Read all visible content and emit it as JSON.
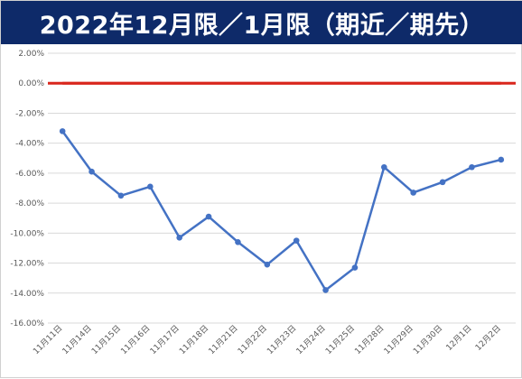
{
  "header": {
    "title": "2022年12月限／1月限（期近／期先）"
  },
  "colors": {
    "title_bg": "#0e2a69",
    "series": "#4472c4",
    "zero_line": "#d9261c",
    "grid": "#d9d9d9"
  },
  "chart_data": {
    "type": "line",
    "title": "2022年12月限／1月限（期近／期先）",
    "xlabel": "",
    "ylabel": "",
    "ylim": [
      -0.16,
      0.02
    ],
    "y_tick_step": 0.02,
    "y_tick_labels": [
      "2.00%",
      "0.00%",
      "-2.00%",
      "-4.00%",
      "-6.00%",
      "-8.00%",
      "-10.00%",
      "-12.00%",
      "-14.00%",
      "-16.00%"
    ],
    "grid": true,
    "legend": "none",
    "categories": [
      "11月11日",
      "11月14日",
      "11月15日",
      "11月16日",
      "11月17日",
      "11月18日",
      "11月21日",
      "11月22日",
      "11月23日",
      "11月24日",
      "11月25日",
      "11月28日",
      "11月29日",
      "11月30日",
      "12月1日",
      "12月2日"
    ],
    "series": [
      {
        "values": [
          -0.032,
          -0.059,
          -0.075,
          -0.069,
          -0.103,
          -0.089,
          -0.106,
          -0.121,
          -0.105,
          -0.138,
          -0.123,
          -0.056,
          -0.073,
          -0.066,
          -0.056,
          -0.051
        ]
      },
      {
        "values": [
          0.0,
          0.0,
          0.0,
          0.0,
          0.0,
          0.0,
          0.0,
          0.0,
          0.0,
          0.0,
          0.0,
          0.0,
          0.0,
          0.0,
          0.0,
          0.0
        ]
      }
    ]
  }
}
